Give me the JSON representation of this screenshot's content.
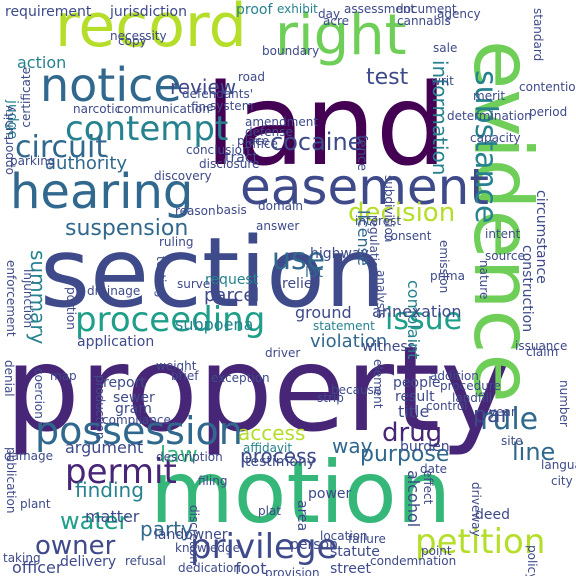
{
  "colors": {
    "background": "#ffffff",
    "palette": [
      "#440154",
      "#482677",
      "#3e4a89",
      "#31688e",
      "#26828e",
      "#1f9e89",
      "#35b779",
      "#6ece58",
      "#b5de2b",
      "#fde725"
    ]
  },
  "words": [
    {
      "text": "property",
      "color": "#482677"
    },
    {
      "text": "motion",
      "color": "#35b779"
    },
    {
      "text": "section",
      "color": "#3e4a89"
    },
    {
      "text": "land",
      "color": "#440154"
    },
    {
      "text": "evidence",
      "color": "#6ece58"
    },
    {
      "text": "easement",
      "color": "#3e4a89"
    },
    {
      "text": "hearing",
      "color": "#31688e"
    },
    {
      "text": "record",
      "color": "#b5de2b"
    },
    {
      "text": "right",
      "color": "#6ece58"
    },
    {
      "text": "notice",
      "color": "#31688e"
    },
    {
      "text": "proceeding",
      "color": "#1f9e89"
    },
    {
      "text": "possession",
      "color": "#31688e"
    },
    {
      "text": "petition",
      "color": "#b5de2b"
    },
    {
      "text": "privilege",
      "color": "#3e4a89"
    },
    {
      "text": "permit",
      "color": "#482677"
    },
    {
      "text": "contempt",
      "color": "#26828e"
    },
    {
      "text": "circuit",
      "color": "#31688e"
    },
    {
      "text": "issue",
      "color": "#1f9e89"
    },
    {
      "text": "use",
      "color": "#31688e"
    },
    {
      "text": "substance",
      "color": "#26828e"
    },
    {
      "text": "decision",
      "color": "#b5de2b"
    },
    {
      "text": "suspension",
      "color": "#31688e"
    },
    {
      "text": "owner",
      "color": "#3e4a89"
    },
    {
      "text": "water",
      "color": "#1f9e89"
    },
    {
      "text": "rule",
      "color": "#31688e"
    },
    {
      "text": "drug",
      "color": "#482677"
    },
    {
      "text": "line",
      "color": "#31688e"
    },
    {
      "text": "par",
      "color": "#3e4a89"
    },
    {
      "text": "test",
      "color": "#3e4a89"
    },
    {
      "text": "review",
      "color": "#3e4a89"
    },
    {
      "text": "cocaine",
      "color": "#3e4a89"
    },
    {
      "text": "information",
      "color": "#26828e"
    },
    {
      "text": "summary",
      "color": "#26828e"
    },
    {
      "text": "law",
      "color": "#35b779"
    },
    {
      "text": "finding",
      "color": "#26828e"
    },
    {
      "text": "purpose",
      "color": "#31688e"
    },
    {
      "text": "process",
      "color": "#3e4a89"
    },
    {
      "text": "access",
      "color": "#b5de2b"
    },
    {
      "text": "way",
      "color": "#31688e"
    },
    {
      "text": "party",
      "color": "#31688e"
    },
    {
      "text": "authority",
      "color": "#31688e"
    },
    {
      "text": "violation",
      "color": "#31688e"
    },
    {
      "text": "license",
      "color": "#31688e"
    },
    {
      "text": "complaint",
      "color": "#26828e"
    },
    {
      "text": "annexation",
      "color": "#3e4a89"
    },
    {
      "text": "action",
      "color": "#26828e"
    },
    {
      "text": "requirement",
      "color": "#3e4a89"
    },
    {
      "text": "jurisdiction",
      "color": "#3e4a89"
    },
    {
      "text": "judge",
      "color": "#26828e"
    },
    {
      "text": "proof",
      "color": "#26828e"
    },
    {
      "text": "exhibit",
      "color": "#26828e"
    },
    {
      "text": "assessment",
      "color": "#3e4a89"
    },
    {
      "text": "document",
      "color": "#3e4a89"
    },
    {
      "text": "agency",
      "color": "#3e4a89"
    },
    {
      "text": "argument",
      "color": "#3e4a89"
    },
    {
      "text": "day",
      "color": "#3e4a89"
    },
    {
      "text": "lot",
      "color": "#31688e"
    },
    {
      "text": "highway",
      "color": "#3e4a89"
    },
    {
      "text": "tract",
      "color": "#3e4a89"
    },
    {
      "text": "fence",
      "color": "#3e4a89"
    },
    {
      "text": "road",
      "color": "#3e4a89"
    },
    {
      "text": "amendment",
      "color": "#3e4a89"
    },
    {
      "text": "defense",
      "color": "#3e4a89"
    },
    {
      "text": "place",
      "color": "#3e4a89"
    },
    {
      "text": "system",
      "color": "#3e4a89"
    },
    {
      "text": "parcel",
      "color": "#3e4a89"
    },
    {
      "text": "request",
      "color": "#26828e"
    },
    {
      "text": "relief",
      "color": "#3e4a89"
    },
    {
      "text": "ground",
      "color": "#3e4a89"
    },
    {
      "text": "statement",
      "color": "#26828e"
    },
    {
      "text": "witness",
      "color": "#3e4a89"
    },
    {
      "text": "subpoena",
      "color": "#26828e"
    },
    {
      "text": "application",
      "color": "#3e4a89"
    },
    {
      "text": "driver",
      "color": "#3e4a89"
    },
    {
      "text": "people",
      "color": "#3e4a89"
    },
    {
      "text": "result",
      "color": "#3e4a89"
    },
    {
      "text": "title",
      "color": "#3e4a89"
    },
    {
      "text": "report",
      "color": "#3e4a89"
    },
    {
      "text": "sewer",
      "color": "#3e4a89"
    },
    {
      "text": "gram",
      "color": "#3e4a89"
    },
    {
      "text": "compliance",
      "color": "#3e4a89"
    },
    {
      "text": "affidavit",
      "color": "#26828e"
    },
    {
      "text": "testimony",
      "color": "#3e4a89"
    },
    {
      "text": "matter",
      "color": "#3e4a89"
    },
    {
      "text": "landowner",
      "color": "#3e4a89"
    },
    {
      "text": "officer",
      "color": "#3e4a89"
    },
    {
      "text": "delivery",
      "color": "#3e4a89"
    },
    {
      "text": "statute",
      "color": "#3e4a89"
    },
    {
      "text": "street",
      "color": "#3e4a89"
    },
    {
      "text": "condemnation",
      "color": "#3e4a89"
    },
    {
      "text": "person",
      "color": "#3e4a89"
    },
    {
      "text": "deed",
      "color": "#3e4a89"
    },
    {
      "text": "burden",
      "color": "#3e4a89"
    },
    {
      "text": "date",
      "color": "#3e4a89"
    },
    {
      "text": "power",
      "color": "#3e4a89"
    },
    {
      "text": "area",
      "color": "#3e4a89"
    },
    {
      "text": "alcohol",
      "color": "#3e4a89"
    },
    {
      "text": "effect",
      "color": "#3e4a89"
    },
    {
      "text": "driveway",
      "color": "#3e4a89"
    },
    {
      "text": "plat",
      "color": "#3e4a89"
    },
    {
      "text": "foot",
      "color": "#3e4a89"
    },
    {
      "text": "provision",
      "color": "#3e4a89"
    },
    {
      "text": "dedication",
      "color": "#3e4a89"
    },
    {
      "text": "refusal",
      "color": "#3e4a89"
    },
    {
      "text": "knowledge",
      "color": "#3e4a89"
    },
    {
      "text": "discretion",
      "color": "#3e4a89"
    },
    {
      "text": "construction",
      "color": "#3e4a89"
    },
    {
      "text": "circumstance",
      "color": "#3e4a89"
    },
    {
      "text": "nature",
      "color": "#3e4a89"
    },
    {
      "text": "source",
      "color": "#3e4a89"
    },
    {
      "text": "intent",
      "color": "#3e4a89"
    },
    {
      "text": "contention",
      "color": "#3e4a89"
    },
    {
      "text": "period",
      "color": "#3e4a89"
    },
    {
      "text": "standard",
      "color": "#3e4a89"
    },
    {
      "text": "emission",
      "color": "#3e4a89"
    },
    {
      "text": "issuance",
      "color": "#3e4a89"
    },
    {
      "text": "consent",
      "color": "#3e4a89"
    },
    {
      "text": "interest",
      "color": "#3e4a89"
    },
    {
      "text": "regulation",
      "color": "#3e4a89"
    },
    {
      "text": "subdivision",
      "color": "#3e4a89"
    },
    {
      "text": "prima",
      "color": "#3e4a89"
    },
    {
      "text": "analysis",
      "color": "#3e4a89"
    },
    {
      "text": "sale",
      "color": "#3e4a89"
    },
    {
      "text": "determination",
      "color": "#3e4a89"
    },
    {
      "text": "merit",
      "color": "#3e4a89"
    },
    {
      "text": "map",
      "color": "#3e4a89"
    },
    {
      "text": "denial",
      "color": "#3e4a89"
    },
    {
      "text": "enforcement",
      "color": "#3e4a89"
    },
    {
      "text": "publication",
      "color": "#3e4a89"
    },
    {
      "text": "taking",
      "color": "#3e4a89"
    },
    {
      "text": "plant",
      "color": "#3e4a89"
    },
    {
      "text": "damage",
      "color": "#3e4a89"
    },
    {
      "text": "parking",
      "color": "#3e4a89"
    },
    {
      "text": "conclusion",
      "color": "#3e4a89"
    },
    {
      "text": "disclosure",
      "color": "#3e4a89"
    },
    {
      "text": "office",
      "color": "#3e4a89"
    },
    {
      "text": "domain",
      "color": "#3e4a89"
    },
    {
      "text": "basis",
      "color": "#3e4a89"
    },
    {
      "text": "reason",
      "color": "#3e4a89"
    },
    {
      "text": "ruling",
      "color": "#3e4a89"
    },
    {
      "text": "survey",
      "color": "#3e4a89"
    },
    {
      "text": "drainage",
      "color": "#3e4a89"
    },
    {
      "text": "injunction",
      "color": "#3e4a89"
    },
    {
      "text": "portion",
      "color": "#3e4a89"
    },
    {
      "text": "production",
      "color": "#3e4a89"
    },
    {
      "text": "exception",
      "color": "#3e4a89"
    },
    {
      "text": "because",
      "color": "#3e4a89"
    },
    {
      "text": "strip",
      "color": "#3e4a89"
    },
    {
      "text": "addition",
      "color": "#3e4a89"
    },
    {
      "text": "procedure",
      "color": "#3e4a89"
    },
    {
      "text": "landfill",
      "color": "#3e4a89"
    },
    {
      "text": "control",
      "color": "#3e4a89"
    },
    {
      "text": "site",
      "color": "#3e4a89"
    },
    {
      "text": "city",
      "color": "#3e4a89"
    },
    {
      "text": "language",
      "color": "#3e4a89"
    },
    {
      "text": "number",
      "color": "#3e4a89"
    },
    {
      "text": "year",
      "color": "#3e4a89"
    },
    {
      "text": "claim",
      "color": "#3e4a89"
    },
    {
      "text": "element",
      "color": "#3e4a89"
    },
    {
      "text": "location",
      "color": "#3e4a89"
    },
    {
      "text": "failure",
      "color": "#3e4a89"
    },
    {
      "text": "description",
      "color": "#3e4a89"
    },
    {
      "text": "filing",
      "color": "#3e4a89"
    },
    {
      "text": "brief",
      "color": "#3e4a89"
    },
    {
      "text": "weight",
      "color": "#3e4a89"
    },
    {
      "text": "boundary",
      "color": "#3e4a89"
    },
    {
      "text": "copy",
      "color": "#3e4a89"
    },
    {
      "text": "necessity",
      "color": "#3e4a89"
    },
    {
      "text": "acre",
      "color": "#3e4a89"
    },
    {
      "text": "cannabis",
      "color": "#3e4a89"
    },
    {
      "text": "communication",
      "color": "#3e4a89"
    },
    {
      "text": "opportunity",
      "color": "#3e4a89"
    },
    {
      "text": "certificate",
      "color": "#3e4a89"
    },
    {
      "text": "narcotic",
      "color": "#3e4a89"
    },
    {
      "text": "fine",
      "color": "#3e4a89"
    },
    {
      "text": "defendants'",
      "color": "#3e4a89"
    },
    {
      "text": "coercion",
      "color": "#3e4a89"
    },
    {
      "text": "policy",
      "color": "#3e4a89"
    },
    {
      "text": "point",
      "color": "#3e4a89"
    },
    {
      "text": "discovery",
      "color": "#3e4a89"
    },
    {
      "text": "testing",
      "color": "#3e4a89"
    },
    {
      "text": "answer",
      "color": "#3e4a89"
    },
    {
      "text": "writ",
      "color": "#3e4a89"
    },
    {
      "text": "capacity",
      "color": "#3e4a89"
    }
  ]
}
